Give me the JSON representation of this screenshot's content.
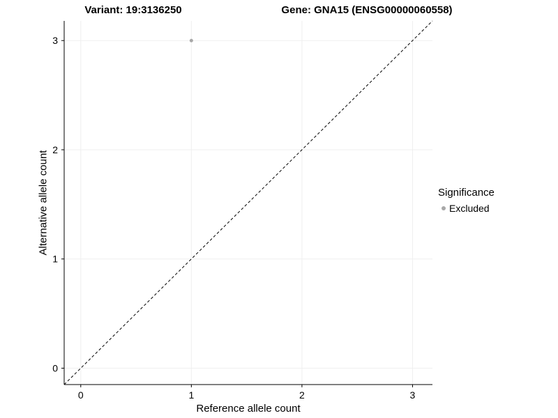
{
  "chart_data": {
    "type": "scatter",
    "title_left": "Variant: 19:3136250",
    "title_right": "Gene: GNA15 (ENSG00000060558)",
    "xlabel": "Reference allele count",
    "ylabel": "Alternative allele count",
    "xlim": [
      -0.15,
      3.18
    ],
    "ylim": [
      -0.15,
      3.18
    ],
    "x_ticks": [
      0,
      1,
      2,
      3
    ],
    "y_ticks": [
      0,
      1,
      2,
      3
    ],
    "grid": true,
    "points": [
      {
        "x": 1,
        "y": 3,
        "series": "Excluded"
      }
    ],
    "reference_line": {
      "shape": "identity-diagonal",
      "style": "dashed",
      "from": [
        -0.15,
        -0.15
      ],
      "to": [
        3.18,
        3.18
      ],
      "color": "#000000"
    },
    "legend": {
      "position": "right",
      "title": "Significance",
      "entries": [
        {
          "label": "Excluded",
          "color": "#a8a8a8"
        }
      ]
    }
  },
  "colors": {
    "background": "#ffffff",
    "grid": "#efefef",
    "axis": "#000000",
    "text": "#000000",
    "point": "#a8a8a8"
  }
}
